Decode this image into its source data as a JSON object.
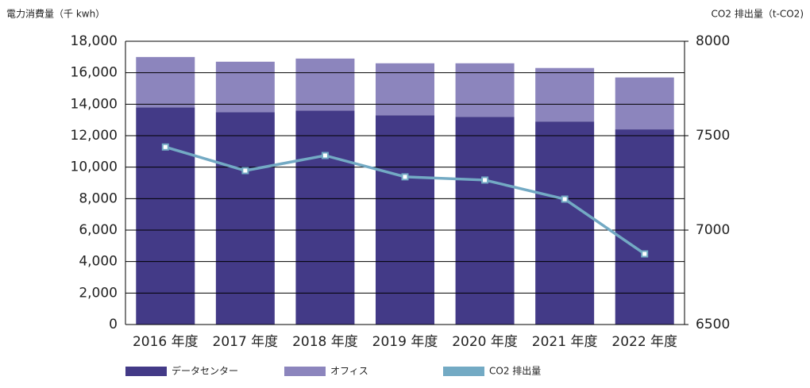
{
  "chart_data": {
    "type": "bar",
    "stacked": true,
    "y_title": "電力消費量（千 kwh）",
    "y2_title": "CO2 排出量（t-CO2)",
    "categories": [
      "2016 年度",
      "2017 年度",
      "2018 年度",
      "2019 年度",
      "2020 年度",
      "2021 年度",
      "2022 年度"
    ],
    "series": [
      {
        "name": "データセンター",
        "color": "#433a87",
        "values": [
          13800,
          13500,
          13600,
          13300,
          13200,
          12900,
          12400
        ]
      },
      {
        "name": "オフィス",
        "color": "#8c85bd",
        "values": [
          3200,
          3200,
          3300,
          3300,
          3400,
          3400,
          3300
        ]
      },
      {
        "name": "CO2 排出量",
        "color": "#73aac4",
        "type": "line",
        "axis": "y2",
        "values": [
          7440,
          7315,
          7395,
          7282,
          7265,
          7164,
          6874
        ]
      }
    ],
    "ylim": [
      0,
      18000
    ],
    "yticks": [
      0,
      {
        "value": 2000,
        "label": "2,000"
      },
      {
        "value": 4000,
        "label": "4,000"
      },
      {
        "value": 6000,
        "label": "6,000"
      },
      {
        "value": 8000,
        "label": "8,000"
      },
      {
        "value": 10000,
        "label": "10,000"
      },
      {
        "value": 12000,
        "label": "12,000"
      },
      {
        "value": 14000,
        "label": "14,000"
      },
      {
        "value": 16000,
        "label": "16,000"
      },
      {
        "value": 18000,
        "label": "18,000"
      }
    ],
    "y2lim": [
      6500,
      8000
    ],
    "y2ticks": [
      6500,
      7000,
      7500,
      8000
    ],
    "grid": true,
    "legend": "bottom"
  }
}
